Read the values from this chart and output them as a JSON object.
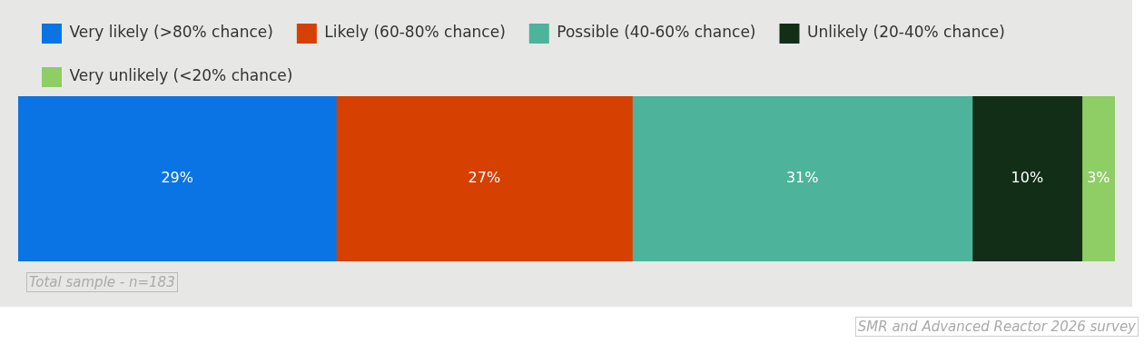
{
  "chart_data": {
    "type": "bar",
    "orientation": "horizontal",
    "stacked": true,
    "categories": [
      null
    ],
    "series": [
      {
        "name": "Very likely (>80% chance)",
        "color": "#0a74e4",
        "values": [
          29
        ],
        "value_labels": [
          "29%"
        ]
      },
      {
        "name": "Likely (60-80% chance)",
        "color": "#d64000",
        "values": [
          27
        ],
        "value_labels": [
          "27%"
        ]
      },
      {
        "name": "Possible (40-60% chance)",
        "color": "#4db39b",
        "values": [
          31
        ],
        "value_labels": [
          "31%"
        ]
      },
      {
        "name": "Unlikely (20-40% chance)",
        "color": "#132e17",
        "values": [
          10
        ],
        "value_labels": [
          "10%"
        ]
      },
      {
        "name": "Very unlikely (<20% chance)",
        "color": "#8fcd65",
        "values": [
          3
        ],
        "value_labels": [
          "3%"
        ]
      }
    ],
    "xlim": [
      0,
      100
    ],
    "legend": "top left",
    "annotations": [
      "Total sample - n=183",
      "SMR and Advanced Reactor 2026 survey"
    ]
  }
}
